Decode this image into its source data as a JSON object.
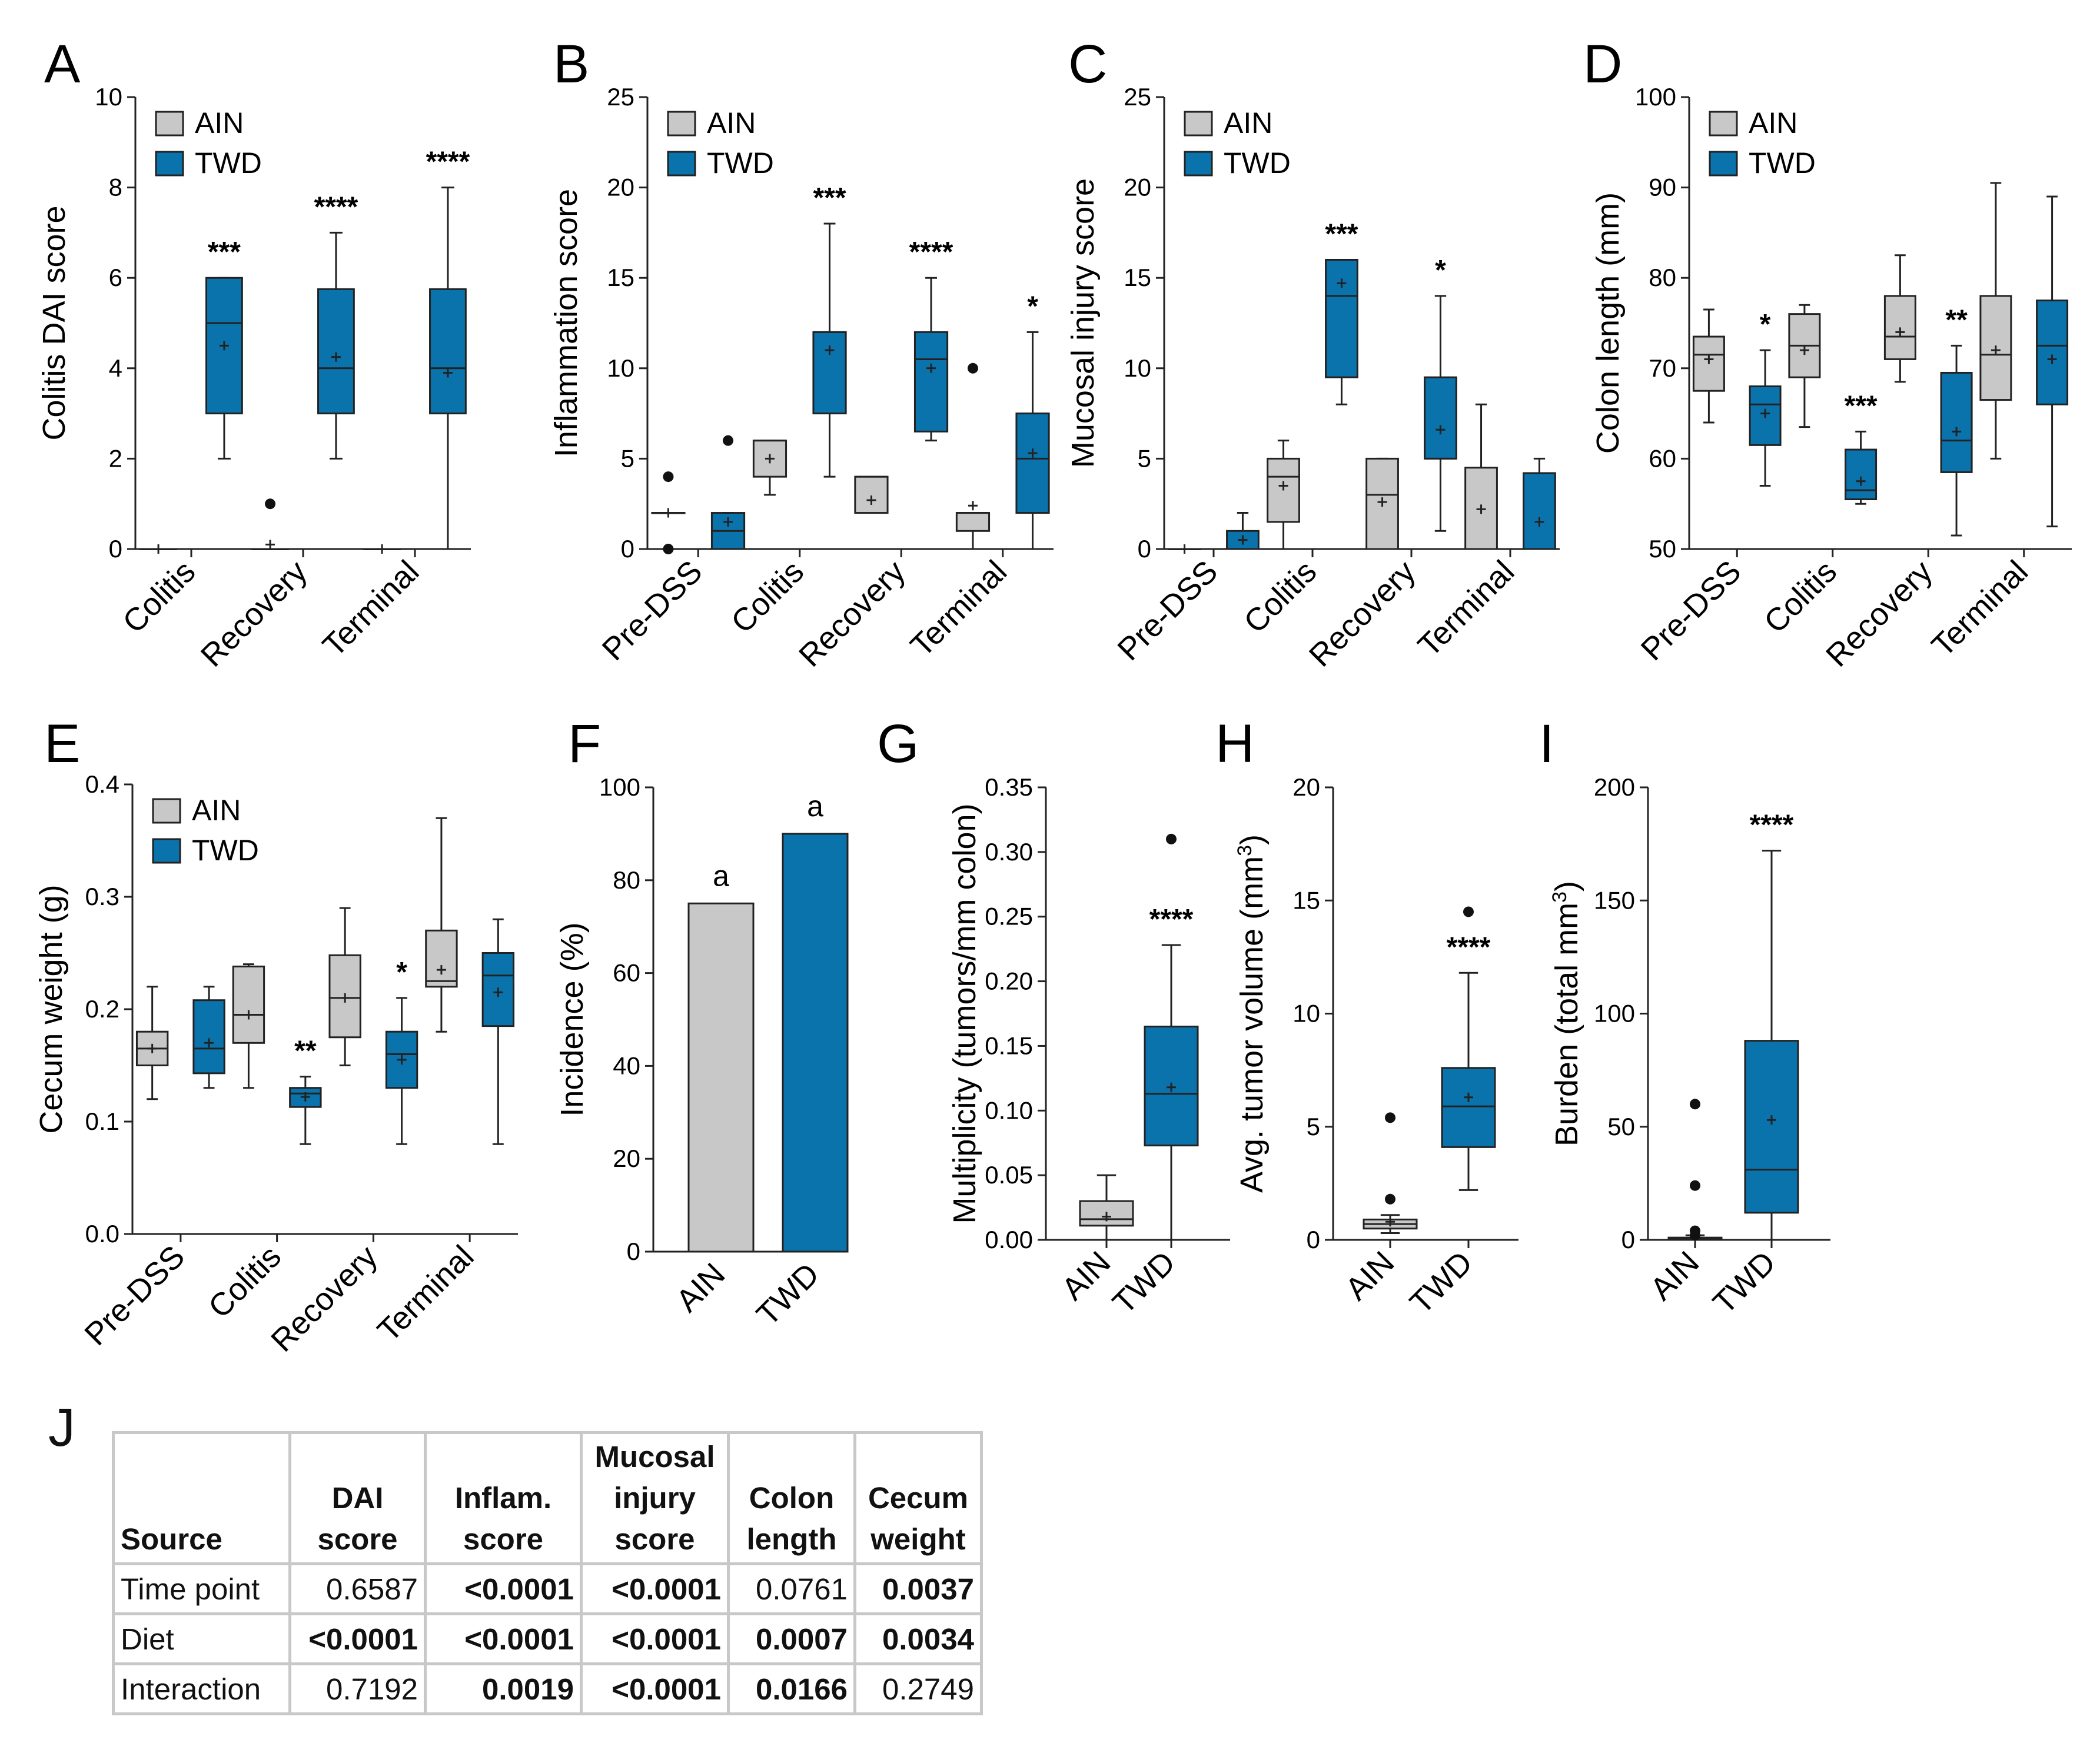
{
  "colors": {
    "ain": "#c8c8c8",
    "twd": "#0b73ac",
    "edge": "#222222"
  },
  "legend": {
    "ain": "AIN",
    "twd": "TWD"
  },
  "chart_data": [
    {
      "id": "A",
      "type": "box",
      "ylabel": "Colitis DAI score",
      "ylim": [
        0,
        10
      ],
      "yticks": [
        "0",
        "2",
        "4",
        "6",
        "8",
        "10"
      ],
      "ytick_values": [
        0,
        2,
        4,
        6,
        8,
        10
      ],
      "categories": [
        "Colitis",
        "Recovery",
        "Terminal"
      ],
      "legend": true,
      "series": [
        {
          "name": "AIN",
          "boxes": [
            {
              "min": 0,
              "q1": 0,
              "median": 0,
              "q3": 0,
              "max": 0,
              "mean": 0,
              "outliers": []
            },
            {
              "min": 0,
              "q1": 0,
              "median": 0,
              "q3": 0,
              "max": 0,
              "mean": 0.1,
              "outliers": [
                1
              ]
            },
            {
              "min": 0,
              "q1": 0,
              "median": 0,
              "q3": 0,
              "max": 0,
              "mean": 0,
              "outliers": []
            }
          ]
        },
        {
          "name": "TWD",
          "boxes": [
            {
              "min": 2,
              "q1": 3,
              "median": 5,
              "q3": 6,
              "max": 6,
              "mean": 4.5,
              "outliers": [],
              "sig": "***"
            },
            {
              "min": 2,
              "q1": 3,
              "median": 4,
              "q3": 5.75,
              "max": 7,
              "mean": 4.25,
              "outliers": [],
              "sig": "****"
            },
            {
              "min": 0,
              "q1": 3,
              "median": 4,
              "q3": 5.75,
              "max": 8,
              "mean": 3.9,
              "outliers": [],
              "sig": "****"
            }
          ]
        }
      ]
    },
    {
      "id": "B",
      "type": "box",
      "ylabel": "Inflammation score",
      "ylim": [
        0,
        25
      ],
      "yticks": [
        "0",
        "5",
        "10",
        "15",
        "20",
        "25"
      ],
      "ytick_values": [
        0,
        5,
        10,
        15,
        20,
        25
      ],
      "categories": [
        "Pre-DSS",
        "Colitis",
        "Recovery",
        "Terminal"
      ],
      "legend": true,
      "series": [
        {
          "name": "AIN",
          "boxes": [
            {
              "min": 2,
              "q1": 2,
              "median": 2,
              "q3": 2,
              "max": 2,
              "mean": 2,
              "outliers": [
                0,
                4
              ]
            },
            {
              "min": 3,
              "q1": 4,
              "median": 6,
              "q3": 6,
              "max": 6,
              "mean": 5,
              "outliers": []
            },
            {
              "min": 2,
              "q1": 2,
              "median": 4,
              "q3": 4,
              "max": 4,
              "mean": 2.7,
              "outliers": []
            },
            {
              "min": 0,
              "q1": 1,
              "median": 2,
              "q3": 2,
              "max": 2,
              "mean": 2.4,
              "outliers": [
                10
              ]
            }
          ]
        },
        {
          "name": "TWD",
          "boxes": [
            {
              "min": 0,
              "q1": 0,
              "median": 1,
              "q3": 2,
              "max": 2,
              "mean": 1.5,
              "outliers": [
                6
              ]
            },
            {
              "min": 4,
              "q1": 7.5,
              "median": 12,
              "q3": 12,
              "max": 18,
              "mean": 11,
              "outliers": [],
              "sig": "***"
            },
            {
              "min": 6,
              "q1": 6.5,
              "median": 10.5,
              "q3": 12,
              "max": 15,
              "mean": 10,
              "outliers": [],
              "sig": "****"
            },
            {
              "min": 0,
              "q1": 2,
              "median": 5,
              "q3": 7.5,
              "max": 12,
              "mean": 5.3,
              "outliers": [],
              "sig": "*"
            }
          ]
        }
      ]
    },
    {
      "id": "C",
      "type": "box",
      "ylabel": "Mucosal injury score",
      "ylim": [
        0,
        25
      ],
      "yticks": [
        "0",
        "5",
        "10",
        "15",
        "20",
        "25"
      ],
      "ytick_values": [
        0,
        5,
        10,
        15,
        20,
        25
      ],
      "categories": [
        "Pre-DSS",
        "Colitis",
        "Recovery",
        "Terminal"
      ],
      "legend": true,
      "series": [
        {
          "name": "AIN",
          "boxes": [
            {
              "min": 0,
              "q1": 0,
              "median": 0,
              "q3": 0,
              "max": 0,
              "mean": 0,
              "outliers": []
            },
            {
              "min": 0,
              "q1": 1.5,
              "median": 4,
              "q3": 5,
              "max": 6,
              "mean": 3.5,
              "outliers": []
            },
            {
              "min": 0,
              "q1": 0,
              "median": 3,
              "q3": 5,
              "max": 5,
              "mean": 2.6,
              "outliers": []
            },
            {
              "min": 0,
              "q1": 0,
              "median": 0,
              "q3": 4.5,
              "max": 8,
              "mean": 2.2,
              "outliers": []
            }
          ]
        },
        {
          "name": "TWD",
          "boxes": [
            {
              "min": 0,
              "q1": 0,
              "median": 0,
              "q3": 1,
              "max": 2,
              "mean": 0.5,
              "outliers": []
            },
            {
              "min": 8,
              "q1": 9.5,
              "median": 14,
              "q3": 16,
              "max": 16,
              "mean": 14.7,
              "outliers": [],
              "sig": "***"
            },
            {
              "min": 1,
              "q1": 5,
              "median": 5,
              "q3": 9.5,
              "max": 14,
              "mean": 6.6,
              "outliers": [],
              "sig": "*"
            },
            {
              "min": 0,
              "q1": 0,
              "median": 0,
              "q3": 4.2,
              "max": 5,
              "mean": 1.5,
              "outliers": []
            }
          ]
        }
      ]
    },
    {
      "id": "D",
      "type": "box",
      "ylabel": "Colon length (mm)",
      "ylim": [
        50,
        100
      ],
      "yticks": [
        "50",
        "60",
        "70",
        "80",
        "90",
        "100"
      ],
      "ytick_values": [
        50,
        60,
        70,
        80,
        90,
        100
      ],
      "categories": [
        "Pre-DSS",
        "Colitis",
        "Recovery",
        "Terminal"
      ],
      "legend": true,
      "series": [
        {
          "name": "AIN",
          "boxes": [
            {
              "min": 64,
              "q1": 67.5,
              "median": 71.5,
              "q3": 73.5,
              "max": 76.5,
              "mean": 71,
              "outliers": []
            },
            {
              "min": 63.5,
              "q1": 69,
              "median": 72.5,
              "q3": 76,
              "max": 77,
              "mean": 72,
              "outliers": []
            },
            {
              "min": 68.5,
              "q1": 71,
              "median": 73.5,
              "q3": 78,
              "max": 82.5,
              "mean": 74,
              "outliers": []
            },
            {
              "min": 60,
              "q1": 66.5,
              "median": 71.5,
              "q3": 78,
              "max": 90.5,
              "mean": 72,
              "outliers": []
            }
          ]
        },
        {
          "name": "TWD",
          "boxes": [
            {
              "min": 57,
              "q1": 61.5,
              "median": 66,
              "q3": 68,
              "max": 72,
              "mean": 65,
              "outliers": [],
              "sig": "*"
            },
            {
              "min": 55,
              "q1": 55.5,
              "median": 56.5,
              "q3": 61,
              "max": 63,
              "mean": 57.5,
              "outliers": [],
              "sig": "***"
            },
            {
              "min": 51.5,
              "q1": 58.5,
              "median": 62,
              "q3": 69.5,
              "max": 72.5,
              "mean": 63,
              "outliers": [],
              "sig": "**"
            },
            {
              "min": 52.5,
              "q1": 66,
              "median": 72.5,
              "q3": 77.5,
              "max": 89,
              "mean": 71,
              "outliers": []
            }
          ]
        }
      ]
    },
    {
      "id": "E",
      "type": "box",
      "ylabel": "Cecum weight (g)",
      "ylim": [
        0,
        0.4
      ],
      "yticks": [
        "0.0",
        "0.1",
        "0.2",
        "0.3",
        "0.4"
      ],
      "ytick_values": [
        0,
        0.1,
        0.2,
        0.3,
        0.4
      ],
      "categories": [
        "Pre-DSS",
        "Colitis",
        "Recovery",
        "Terminal"
      ],
      "legend": true,
      "series": [
        {
          "name": "AIN",
          "boxes": [
            {
              "min": 0.12,
              "q1": 0.15,
              "median": 0.165,
              "q3": 0.18,
              "max": 0.22,
              "mean": 0.165,
              "outliers": []
            },
            {
              "min": 0.13,
              "q1": 0.17,
              "median": 0.195,
              "q3": 0.238,
              "max": 0.24,
              "mean": 0.195,
              "outliers": []
            },
            {
              "min": 0.15,
              "q1": 0.175,
              "median": 0.21,
              "q3": 0.248,
              "max": 0.29,
              "mean": 0.21,
              "outliers": []
            },
            {
              "min": 0.18,
              "q1": 0.22,
              "median": 0.225,
              "q3": 0.27,
              "max": 0.37,
              "mean": 0.235,
              "outliers": []
            }
          ]
        },
        {
          "name": "TWD",
          "boxes": [
            {
              "min": 0.13,
              "q1": 0.143,
              "median": 0.165,
              "q3": 0.208,
              "max": 0.22,
              "mean": 0.17,
              "outliers": []
            },
            {
              "min": 0.08,
              "q1": 0.113,
              "median": 0.125,
              "q3": 0.13,
              "max": 0.14,
              "mean": 0.122,
              "outliers": [],
              "sig": "**"
            },
            {
              "min": 0.08,
              "q1": 0.13,
              "median": 0.16,
              "q3": 0.18,
              "max": 0.21,
              "mean": 0.155,
              "outliers": [],
              "sig": "*"
            },
            {
              "min": 0.08,
              "q1": 0.185,
              "median": 0.23,
              "q3": 0.25,
              "max": 0.28,
              "mean": 0.215,
              "outliers": []
            }
          ]
        }
      ]
    },
    {
      "id": "F",
      "type": "bar",
      "ylabel": "Incidence (%)",
      "ylim": [
        0,
        100
      ],
      "yticks": [
        "0",
        "20",
        "40",
        "60",
        "80",
        "100"
      ],
      "ytick_values": [
        0,
        20,
        40,
        60,
        80,
        100
      ],
      "categories": [
        "AIN",
        "TWD"
      ],
      "values": [
        75,
        90
      ],
      "labels": [
        "a",
        "a"
      ]
    },
    {
      "id": "G",
      "type": "box",
      "ylabel": "Multiplicity (tumors/mm colon)",
      "ylim": [
        0,
        0.35
      ],
      "yticks": [
        "0.00",
        "0.05",
        "0.10",
        "0.15",
        "0.20",
        "0.25",
        "0.30",
        "0.35"
      ],
      "ytick_values": [
        0,
        0.05,
        0.1,
        0.15,
        0.2,
        0.25,
        0.3,
        0.35
      ],
      "categories": [
        "AIN",
        "TWD"
      ],
      "boxes": [
        {
          "min": 0,
          "q1": 0.011,
          "median": 0.016,
          "q3": 0.03,
          "max": 0.05,
          "mean": 0.018,
          "outliers": []
        },
        {
          "min": 0,
          "q1": 0.073,
          "median": 0.113,
          "q3": 0.165,
          "max": 0.228,
          "mean": 0.118,
          "outliers": [
            0.31
          ],
          "sig": "****"
        }
      ]
    },
    {
      "id": "H",
      "type": "box",
      "ylabel": "Avg. tumor volume (mm³)",
      "ylim": [
        0,
        20
      ],
      "yticks": [
        "0",
        "5",
        "10",
        "15",
        "20"
      ],
      "ytick_values": [
        0,
        5,
        10,
        15,
        20
      ],
      "categories": [
        "AIN",
        "TWD"
      ],
      "boxes": [
        {
          "min": 0.3,
          "q1": 0.5,
          "median": 0.7,
          "q3": 0.9,
          "max": 1.1,
          "mean": 0.8,
          "outliers": [
            1.8,
            5.4
          ]
        },
        {
          "min": 2.2,
          "q1": 4.1,
          "median": 5.9,
          "q3": 7.6,
          "max": 11.8,
          "mean": 6.3,
          "outliers": [
            14.5
          ],
          "sig": "****"
        }
      ]
    },
    {
      "id": "I",
      "type": "box",
      "ylabel": "Burden (total mm³)",
      "ylim": [
        0,
        200
      ],
      "yticks": [
        "0",
        "50",
        "100",
        "150",
        "200"
      ],
      "ytick_values": [
        0,
        50,
        100,
        150,
        200
      ],
      "categories": [
        "AIN",
        "TWD"
      ],
      "boxes": [
        {
          "min": 0,
          "q1": 0,
          "median": 0.5,
          "q3": 1,
          "max": 2,
          "mean": 3,
          "outliers": [
            2,
            4,
            24,
            60
          ]
        },
        {
          "min": 0,
          "q1": 12,
          "median": 31,
          "q3": 88,
          "max": 172,
          "mean": 53,
          "outliers": [],
          "sig": "****"
        }
      ]
    }
  ],
  "table": {
    "letter": "J",
    "headers": [
      "Source",
      "DAI score",
      "Inflam. score",
      "Mucosal injury score",
      "Colon length",
      "Cecum weight"
    ],
    "rows": [
      {
        "label": "Time point",
        "values": [
          "0.6587",
          "<0.0001",
          "<0.0001",
          "0.0761",
          "0.0037"
        ]
      },
      {
        "label": "Diet",
        "values": [
          "<0.0001",
          "<0.0001",
          "<0.0001",
          "0.0007",
          "0.0034"
        ]
      },
      {
        "label": "Interaction",
        "values": [
          "0.7192",
          "0.0019",
          "<0.0001",
          "0.0166",
          "0.2749"
        ]
      }
    ]
  }
}
